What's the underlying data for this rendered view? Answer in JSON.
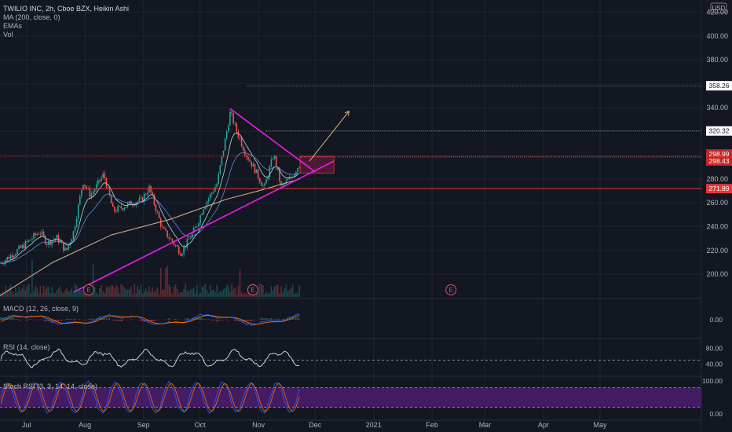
{
  "header": {
    "symbol_line": "TWILIO INC, 2h, Cboe BZX, Heikin Ashi",
    "indicators": [
      "MA (200, close, 0)",
      "EMAs",
      "Vol"
    ],
    "currency": "USD"
  },
  "panes": {
    "macd_label": "MACD (12, 26, close, 9)",
    "rsi_label": "RSI (14, close)",
    "stoch_label": "Stoch RSI (3, 3, 14, 14, close)"
  },
  "colors": {
    "background": "#131722",
    "up": "#26a69a",
    "down": "#ef5350",
    "trendline": "#e91ee9",
    "support": "#e53935",
    "ma200": "#d9b38c",
    "ema_fast": "#b2dfdb",
    "ema_slow": "#5c8fd6",
    "stoch_band": "#4a1d6b"
  },
  "chart_data": {
    "type": "candlestick",
    "x_ticks": [
      "Jul",
      "Aug",
      "Sep",
      "Oct",
      "Nov",
      "Dec",
      "2021",
      "Feb",
      "Mar",
      "Apr",
      "May"
    ],
    "price_ticks": [
      "420.00",
      "400.00",
      "380.00",
      "360.00",
      "340.00",
      "320.00",
      "300.00",
      "280.00",
      "260.00",
      "240.00",
      "220.00",
      "200.00"
    ],
    "ylim": [
      181,
      425
    ],
    "price_path": [
      {
        "d": "2020-06-17",
        "p": 209
      },
      {
        "d": "2020-06-28",
        "p": 222
      },
      {
        "d": "2020-07-08",
        "p": 236
      },
      {
        "d": "2020-07-12",
        "p": 226
      },
      {
        "d": "2020-07-17",
        "p": 231
      },
      {
        "d": "2020-07-22",
        "p": 219
      },
      {
        "d": "2020-07-26",
        "p": 236
      },
      {
        "d": "2020-07-31",
        "p": 278
      },
      {
        "d": "2020-08-04",
        "p": 266
      },
      {
        "d": "2020-08-11",
        "p": 284
      },
      {
        "d": "2020-08-16",
        "p": 253
      },
      {
        "d": "2020-08-26",
        "p": 260
      },
      {
        "d": "2020-08-31",
        "p": 262
      },
      {
        "d": "2020-09-04",
        "p": 273
      },
      {
        "d": "2020-09-11",
        "p": 238
      },
      {
        "d": "2020-09-21",
        "p": 218
      },
      {
        "d": "2020-09-29",
        "p": 240
      },
      {
        "d": "2020-10-03",
        "p": 257
      },
      {
        "d": "2020-10-10",
        "p": 276
      },
      {
        "d": "2020-10-14",
        "p": 310
      },
      {
        "d": "2020-10-17",
        "p": 336
      },
      {
        "d": "2020-10-20",
        "p": 322
      },
      {
        "d": "2020-10-25",
        "p": 302
      },
      {
        "d": "2020-10-30",
        "p": 288
      },
      {
        "d": "2020-11-04",
        "p": 272
      },
      {
        "d": "2020-11-09",
        "p": 301
      },
      {
        "d": "2020-11-13",
        "p": 273
      },
      {
        "d": "2020-11-18",
        "p": 281
      },
      {
        "d": "2020-11-23",
        "p": 293
      }
    ],
    "ma200": [
      {
        "d": "2020-06-17",
        "p": 182
      },
      {
        "d": "2020-07-15",
        "p": 210
      },
      {
        "d": "2020-08-15",
        "p": 233
      },
      {
        "d": "2020-09-15",
        "p": 246
      },
      {
        "d": "2020-10-15",
        "p": 263
      },
      {
        "d": "2020-11-01",
        "p": 270
      },
      {
        "d": "2020-11-23",
        "p": 280
      }
    ],
    "horizontal_levels": [
      {
        "value": 358.26,
        "label": "358.26",
        "from": "2020-10-26"
      },
      {
        "value": 320.32,
        "label": "320.32",
        "from": "2020-11-05"
      },
      {
        "value": 298.99,
        "label": "298.99",
        "from": "2020-06-17"
      },
      {
        "value": 298.43,
        "label": "298.43",
        "from": "2020-11-23"
      },
      {
        "value": 271.89,
        "label": "271.89",
        "from": "2020-06-17"
      }
    ],
    "trendlines": [
      {
        "from": {
          "d": "2020-07-26",
          "p": 185
        },
        "to": {
          "d": "2020-12-11",
          "p": 295
        }
      },
      {
        "from": {
          "d": "2020-10-17",
          "p": 339
        },
        "to": {
          "d": "2020-12-01",
          "p": 286
        }
      }
    ],
    "projection_arrow": {
      "from": {
        "d": "2020-11-28",
        "p": 295
      },
      "to": {
        "d": "2020-12-19",
        "p": 337
      }
    },
    "target_box": {
      "from": "2020-11-23",
      "to": "2020-12-11",
      "top": 298.99,
      "bottom": 285
    },
    "earnings_markers": [
      {
        "d": "2020-08-03",
        "label": "E"
      },
      {
        "d": "2020-10-29",
        "label": "E"
      },
      {
        "d": "2021-02-11",
        "label": "E"
      }
    ],
    "macd_ticks": [
      "0.00"
    ],
    "rsi_ticks": [
      "80.00",
      "40.00"
    ],
    "rsi_level": 50,
    "stoch_ticks": [
      "100.00",
      "0.00"
    ],
    "stoch_band": [
      20,
      80
    ]
  }
}
